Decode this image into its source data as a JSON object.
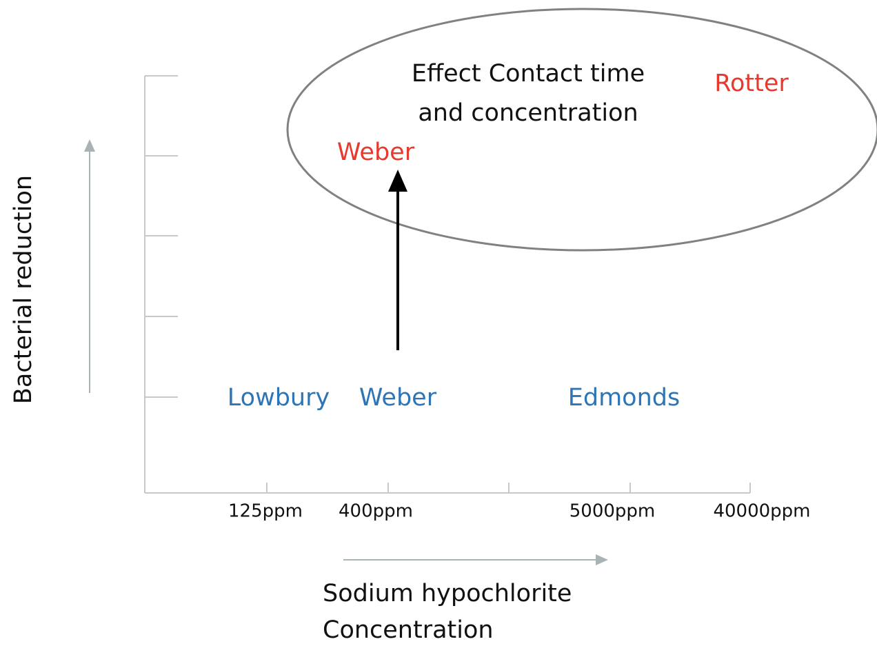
{
  "y_axis_label": "Bacterial reduction",
  "x_axis_label": [
    "Sodium hypochlorite",
    "Concentration"
  ],
  "x_tick_labels": [
    "125ppm",
    "400ppm",
    "5000ppm",
    "40000ppm"
  ],
  "ellipse_label": [
    "Effect Contact time",
    "and concentration"
  ],
  "highlight_labels": [
    "Weber",
    "Rotter"
  ],
  "baseline_labels": [
    "Lowbury",
    "Weber",
    "Edmonds"
  ]
}
